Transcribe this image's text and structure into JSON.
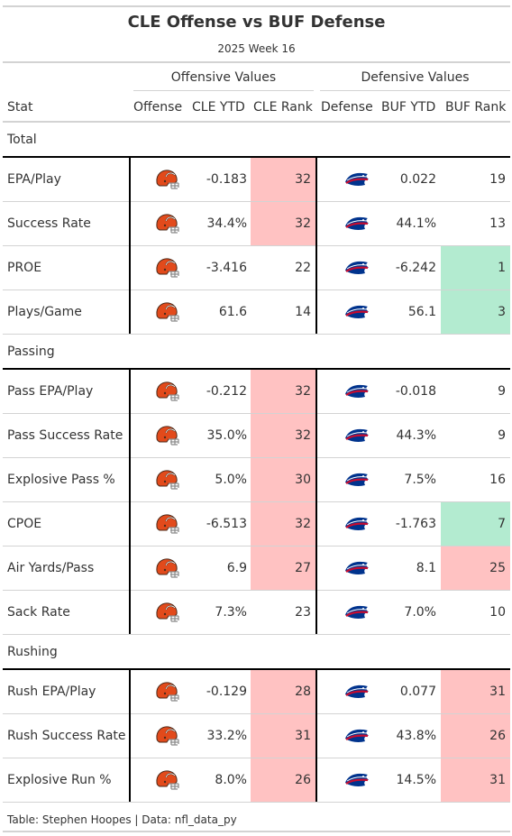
{
  "title": "CLE Offense vs BUF Defense",
  "subtitle": "2025 Week 16",
  "spanners": {
    "offense": "Offensive Values",
    "defense": "Defensive Values"
  },
  "columns": {
    "stat": "Stat",
    "offense": "Offense",
    "cle_ytd": "CLE YTD",
    "cle_rank": "CLE Rank",
    "defense": "Defense",
    "buf_ytd": "BUF YTD",
    "buf_rank": "BUF Rank"
  },
  "colors": {
    "bad": "#ffc2c2",
    "good": "#b3ebd0",
    "browns_orange": "#e24a1b",
    "bills_blue": "#00338d",
    "bills_red": "#c60c30"
  },
  "groups": [
    {
      "label": "Total",
      "rows": [
        {
          "stat": "EPA/Play",
          "cle_ytd": "-0.183",
          "cle_rank": "32",
          "cle_rank_color": "bad",
          "buf_ytd": "0.022",
          "buf_rank": "19",
          "buf_rank_color": ""
        },
        {
          "stat": "Success Rate",
          "cle_ytd": "34.4%",
          "cle_rank": "32",
          "cle_rank_color": "bad",
          "buf_ytd": "44.1%",
          "buf_rank": "13",
          "buf_rank_color": ""
        },
        {
          "stat": "PROE",
          "cle_ytd": "-3.416",
          "cle_rank": "22",
          "cle_rank_color": "",
          "buf_ytd": "-6.242",
          "buf_rank": "1",
          "buf_rank_color": "good"
        },
        {
          "stat": "Plays/Game",
          "cle_ytd": "61.6",
          "cle_rank": "14",
          "cle_rank_color": "",
          "buf_ytd": "56.1",
          "buf_rank": "3",
          "buf_rank_color": "good"
        }
      ]
    },
    {
      "label": "Passing",
      "rows": [
        {
          "stat": "Pass EPA/Play",
          "cle_ytd": "-0.212",
          "cle_rank": "32",
          "cle_rank_color": "bad",
          "buf_ytd": "-0.018",
          "buf_rank": "9",
          "buf_rank_color": ""
        },
        {
          "stat": "Pass Success Rate",
          "cle_ytd": "35.0%",
          "cle_rank": "32",
          "cle_rank_color": "bad",
          "buf_ytd": "44.3%",
          "buf_rank": "9",
          "buf_rank_color": ""
        },
        {
          "stat": "Explosive Pass %",
          "cle_ytd": "5.0%",
          "cle_rank": "30",
          "cle_rank_color": "bad",
          "buf_ytd": "7.5%",
          "buf_rank": "16",
          "buf_rank_color": ""
        },
        {
          "stat": "CPOE",
          "cle_ytd": "-6.513",
          "cle_rank": "32",
          "cle_rank_color": "bad",
          "buf_ytd": "-1.763",
          "buf_rank": "7",
          "buf_rank_color": "good"
        },
        {
          "stat": "Air Yards/Pass",
          "cle_ytd": "6.9",
          "cle_rank": "27",
          "cle_rank_color": "bad",
          "buf_ytd": "8.1",
          "buf_rank": "25",
          "buf_rank_color": "bad"
        },
        {
          "stat": "Sack Rate",
          "cle_ytd": "7.3%",
          "cle_rank": "23",
          "cle_rank_color": "",
          "buf_ytd": "7.0%",
          "buf_rank": "10",
          "buf_rank_color": ""
        }
      ]
    },
    {
      "label": "Rushing",
      "rows": [
        {
          "stat": "Rush EPA/Play",
          "cle_ytd": "-0.129",
          "cle_rank": "28",
          "cle_rank_color": "bad",
          "buf_ytd": "0.077",
          "buf_rank": "31",
          "buf_rank_color": "bad"
        },
        {
          "stat": "Rush Success Rate",
          "cle_ytd": "33.2%",
          "cle_rank": "31",
          "cle_rank_color": "bad",
          "buf_ytd": "43.8%",
          "buf_rank": "26",
          "buf_rank_color": "bad"
        },
        {
          "stat": "Explosive Run %",
          "cle_ytd": "8.0%",
          "cle_rank": "26",
          "cle_rank_color": "bad",
          "buf_ytd": "14.5%",
          "buf_rank": "31",
          "buf_rank_color": "bad"
        }
      ]
    }
  ],
  "icons": {
    "offense_logo": "browns-helmet-icon",
    "defense_logo": "bills-logo-icon"
  },
  "footer": "Table: Stephen Hoopes | Data: nfl_data_py"
}
